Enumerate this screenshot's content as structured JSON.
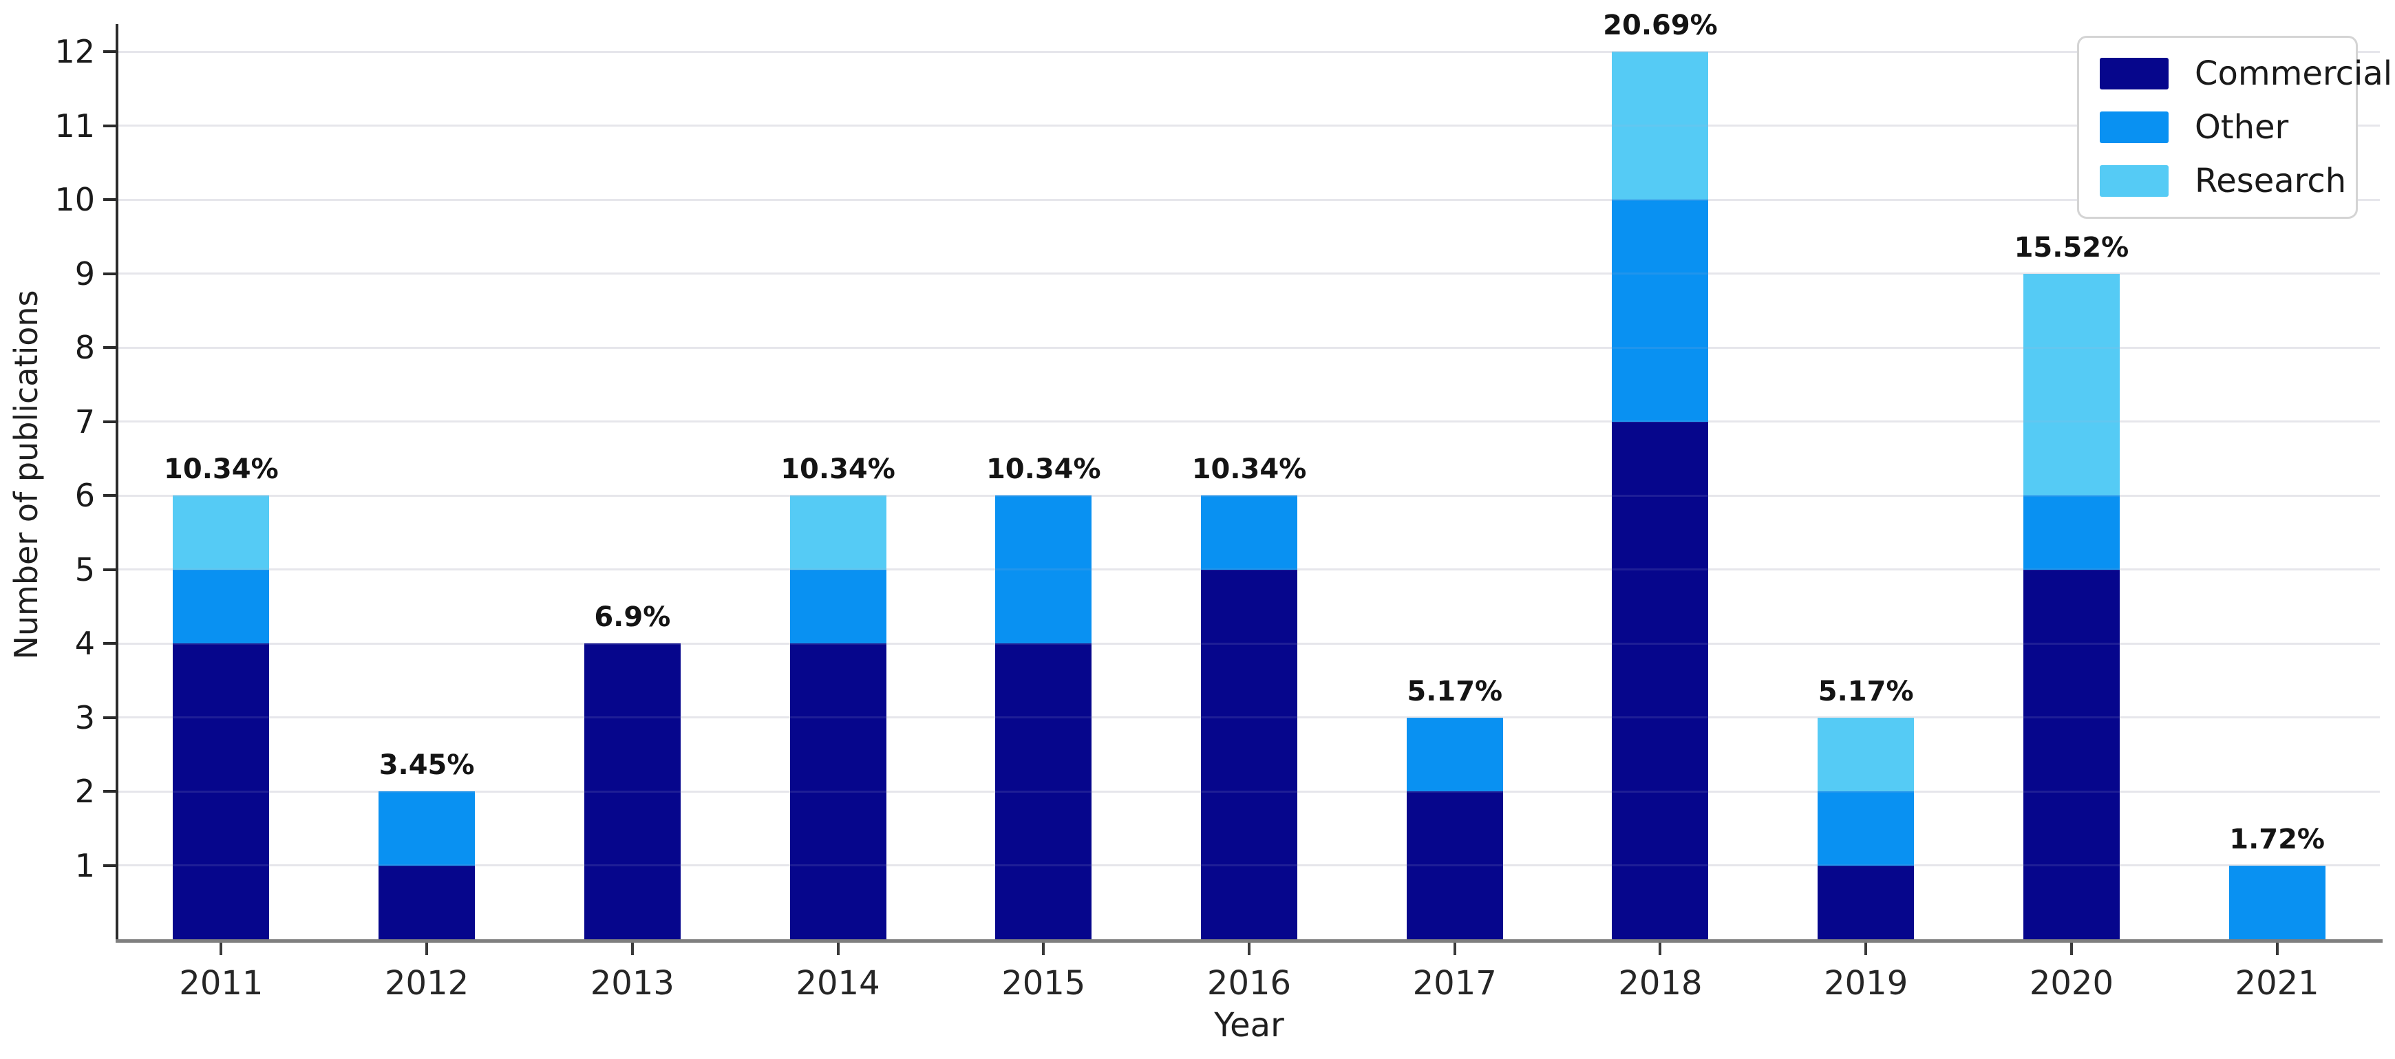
{
  "chart_data": {
    "type": "bar",
    "stacked": true,
    "title": "",
    "xlabel": "Year",
    "ylabel": "Number of publications",
    "categories": [
      "2011",
      "2012",
      "2013",
      "2014",
      "2015",
      "2016",
      "2017",
      "2018",
      "2019",
      "2020",
      "2021"
    ],
    "series": [
      {
        "name": "Commercial",
        "color": "#06068C",
        "values": [
          4,
          1,
          4,
          4,
          4,
          5,
          2,
          7,
          1,
          5,
          0
        ]
      },
      {
        "name": "Other",
        "color": "#0991F2",
        "values": [
          1,
          1,
          0,
          1,
          2,
          1,
          1,
          3,
          1,
          1,
          1
        ]
      },
      {
        "name": "Research",
        "color": "#55CBF5",
        "values": [
          1,
          0,
          0,
          1,
          0,
          0,
          0,
          2,
          1,
          3,
          0
        ]
      }
    ],
    "totals": [
      6,
      2,
      4,
      6,
      6,
      6,
      3,
      12,
      3,
      9,
      1
    ],
    "bar_labels": [
      "10.34%",
      "3.45%",
      "6.9%",
      "10.34%",
      "10.34%",
      "10.34%",
      "5.17%",
      "20.69%",
      "5.17%",
      "15.52%",
      "1.72%"
    ],
    "y_ticks": [
      1,
      2,
      3,
      4,
      5,
      6,
      7,
      8,
      9,
      10,
      11,
      12
    ],
    "ylim": [
      0,
      12.4
    ],
    "grid": "horizontal",
    "legend": {
      "position": "top-right",
      "entries": [
        "Commercial",
        "Other",
        "Research"
      ]
    }
  }
}
